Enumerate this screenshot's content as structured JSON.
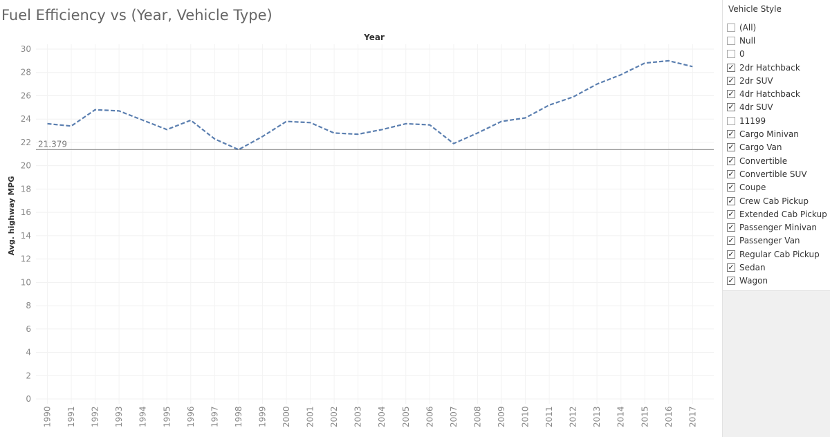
{
  "title": "Fuel Efficiency vs (Year, Vehicle Type)",
  "chart_data": {
    "type": "line",
    "title": "Fuel Efficiency vs (Year, Vehicle Type)",
    "xlabel": "Year",
    "ylabel": "Avg. highway MPG",
    "x_axis_position": "top",
    "ylim": [
      0,
      30
    ],
    "yticks": [
      0,
      2,
      4,
      6,
      8,
      10,
      12,
      14,
      16,
      18,
      20,
      22,
      24,
      26,
      28,
      30
    ],
    "categories": [
      "1990",
      "1991",
      "1992",
      "1993",
      "1994",
      "1995",
      "1996",
      "1997",
      "1998",
      "1999",
      "2000",
      "2001",
      "2002",
      "2003",
      "2004",
      "2005",
      "2006",
      "2007",
      "2008",
      "2009",
      "2010",
      "2011",
      "2012",
      "2013",
      "2014",
      "2015",
      "2016",
      "2017"
    ],
    "series": [
      {
        "values": [
          23.6,
          23.4,
          24.8,
          24.7,
          23.9,
          23.1,
          23.9,
          22.3,
          21.38,
          22.5,
          23.8,
          23.7,
          22.8,
          22.7,
          23.1,
          23.6,
          23.5,
          21.9,
          22.8,
          23.8,
          24.1,
          25.2,
          25.9,
          27.0,
          27.8,
          28.8,
          29.0,
          28.5
        ],
        "color": "#5b7fb0",
        "line_style": "dashed"
      }
    ],
    "reference_line": {
      "value": 21.379,
      "label": "21.379",
      "color": "#999999"
    },
    "grid": true
  },
  "filter": {
    "title": "Vehicle  Style",
    "items": [
      {
        "label": "(All)",
        "checked": false
      },
      {
        "label": "Null",
        "checked": false
      },
      {
        "label": "0",
        "checked": false
      },
      {
        "label": "2dr Hatchback",
        "checked": true
      },
      {
        "label": "2dr SUV",
        "checked": true
      },
      {
        "label": "4dr Hatchback",
        "checked": true
      },
      {
        "label": "4dr SUV",
        "checked": true
      },
      {
        "label": "11199",
        "checked": false
      },
      {
        "label": "Cargo Minivan",
        "checked": true
      },
      {
        "label": "Cargo Van",
        "checked": true
      },
      {
        "label": "Convertible",
        "checked": true
      },
      {
        "label": "Convertible SUV",
        "checked": true
      },
      {
        "label": "Coupe",
        "checked": true
      },
      {
        "label": "Crew Cab Pickup",
        "checked": true
      },
      {
        "label": "Extended Cab Pickup",
        "checked": true
      },
      {
        "label": "Passenger Minivan",
        "checked": true
      },
      {
        "label": "Passenger Van",
        "checked": true
      },
      {
        "label": "Regular Cab Pickup",
        "checked": true
      },
      {
        "label": "Sedan",
        "checked": true
      },
      {
        "label": "Wagon",
        "checked": true
      }
    ]
  }
}
